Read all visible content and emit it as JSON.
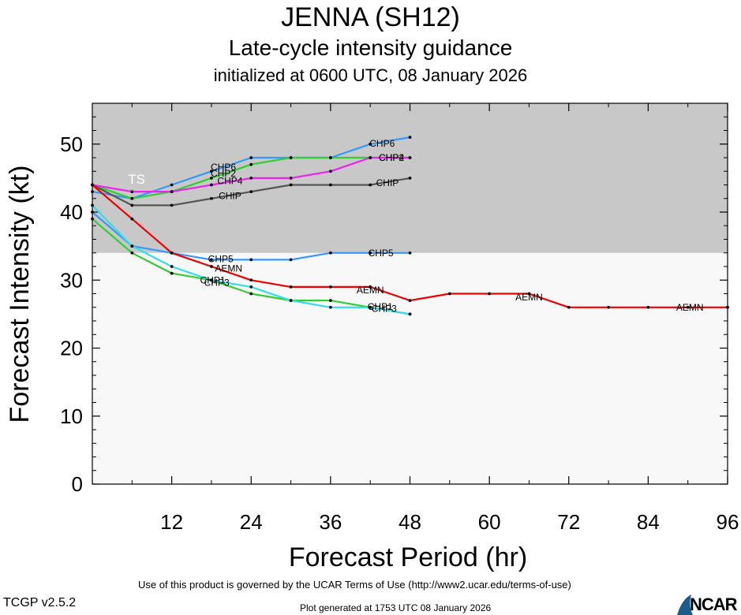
{
  "header": {
    "title": "JENNA (SH12)",
    "subtitle": "Late-cycle intensity guidance",
    "init": "initialized at 0600 UTC, 08 January 2026"
  },
  "footer": {
    "terms": "Use of this product is governed by the UCAR Terms of Use (http://www2.ucar.edu/terms-of-use)",
    "version": "TCGP v2.5.2",
    "generated": "Plot generated at 1753 UTC   08 January 2026",
    "logo": "NCAR"
  },
  "chart_data": {
    "type": "line",
    "xlabel": "Forecast Period (hr)",
    "ylabel": "Forecast Intensity (kt)",
    "xlim": [
      0,
      96
    ],
    "ylim": [
      0,
      56
    ],
    "xticks": [
      12,
      24,
      36,
      48,
      60,
      72,
      84,
      96
    ],
    "yticks": [
      0,
      10,
      20,
      30,
      40,
      50
    ],
    "shading": {
      "label": "TS",
      "y_from": 34,
      "y_to": 56,
      "color": "#c8c8c8"
    },
    "colors": {
      "background": "#f8f8f8"
    },
    "series": [
      {
        "name": "CHP6",
        "color": "#3399ff",
        "x": [
          0,
          6,
          12,
          18,
          24,
          30,
          36,
          42,
          48
        ],
        "y": [
          43,
          42,
          44,
          46,
          48,
          48,
          48,
          50,
          51
        ]
      },
      {
        "name": "CHP2",
        "color": "#33cc33",
        "x": [
          0,
          6,
          12,
          18,
          24,
          30,
          36,
          42,
          48
        ],
        "y": [
          44,
          42,
          43,
          45,
          47,
          48,
          48,
          48,
          48
        ]
      },
      {
        "name": "CHP4",
        "color": "#ee22ee",
        "x": [
          0,
          6,
          12,
          18,
          24,
          30,
          36,
          42,
          48
        ],
        "y": [
          44,
          43,
          43,
          44,
          45,
          45,
          46,
          48,
          48
        ]
      },
      {
        "name": "CHIP",
        "color": "#555555",
        "x": [
          0,
          6,
          12,
          18,
          24,
          30,
          36,
          42,
          48
        ],
        "y": [
          44,
          41,
          41,
          42,
          43,
          44,
          44,
          44,
          45
        ]
      },
      {
        "name": "CHP5",
        "color": "#3399ff",
        "x": [
          0,
          6,
          12,
          18,
          24,
          30,
          36,
          42,
          48
        ],
        "y": [
          40,
          35,
          34,
          33,
          33,
          33,
          34,
          34,
          34
        ]
      },
      {
        "name": "AEMN",
        "color": "#ee0000",
        "x": [
          0,
          6,
          12,
          18,
          24,
          30,
          36,
          42,
          48,
          54,
          60,
          66,
          72,
          78,
          84,
          90,
          96
        ],
        "y": [
          44,
          39,
          34,
          32,
          30,
          29,
          29,
          29,
          27,
          28,
          28,
          28,
          26,
          26,
          26,
          26,
          26
        ]
      },
      {
        "name": "CHP1",
        "color": "#33cc33",
        "x": [
          0,
          6,
          12,
          18,
          24,
          30,
          36,
          42,
          48
        ],
        "y": [
          39,
          34,
          31,
          30,
          28,
          27,
          27,
          26,
          25
        ]
      },
      {
        "name": "CHP3",
        "color": "#33ddee",
        "x": [
          0,
          6,
          12,
          18,
          24,
          30,
          36,
          42,
          48
        ],
        "y": [
          41,
          35,
          32,
          30,
          29,
          27,
          26,
          26,
          25
        ]
      }
    ],
    "labels": [
      {
        "text": "CHP6",
        "x": 43.8,
        "y": 50.1
      },
      {
        "text": "CHP2",
        "x": 19.8,
        "y": 45.7
      },
      {
        "text": "CHP6",
        "x": 19.8,
        "y": 46.6
      },
      {
        "text": "CHP4",
        "x": 20.8,
        "y": 44.6
      },
      {
        "text": "CHIP",
        "x": 20.8,
        "y": 42.4
      },
      {
        "text": "CHP2",
        "x": 45.2,
        "y": 48.0
      },
      {
        "text": "CHP4",
        "x": 45.2,
        "y": 48.0
      },
      {
        "text": "CHIP",
        "x": 44.6,
        "y": 44.3
      },
      {
        "text": "CHP5",
        "x": 19.4,
        "y": 33.1
      },
      {
        "text": "CHP5",
        "x": 43.6,
        "y": 34.0
      },
      {
        "text": "AEMN",
        "x": 20.6,
        "y": 31.7
      },
      {
        "text": "CHP1",
        "x": 18.2,
        "y": 30.0
      },
      {
        "text": "CHP3",
        "x": 18.8,
        "y": 29.6
      },
      {
        "text": "AEMN",
        "x": 42.0,
        "y": 28.5
      },
      {
        "text": "CHP1",
        "x": 43.5,
        "y": 26.1
      },
      {
        "text": "CHP3",
        "x": 44.1,
        "y": 25.8
      },
      {
        "text": "AEMN",
        "x": 66.0,
        "y": 27.5
      },
      {
        "text": "AEMN",
        "x": 90.3,
        "y": 26.0
      }
    ]
  }
}
